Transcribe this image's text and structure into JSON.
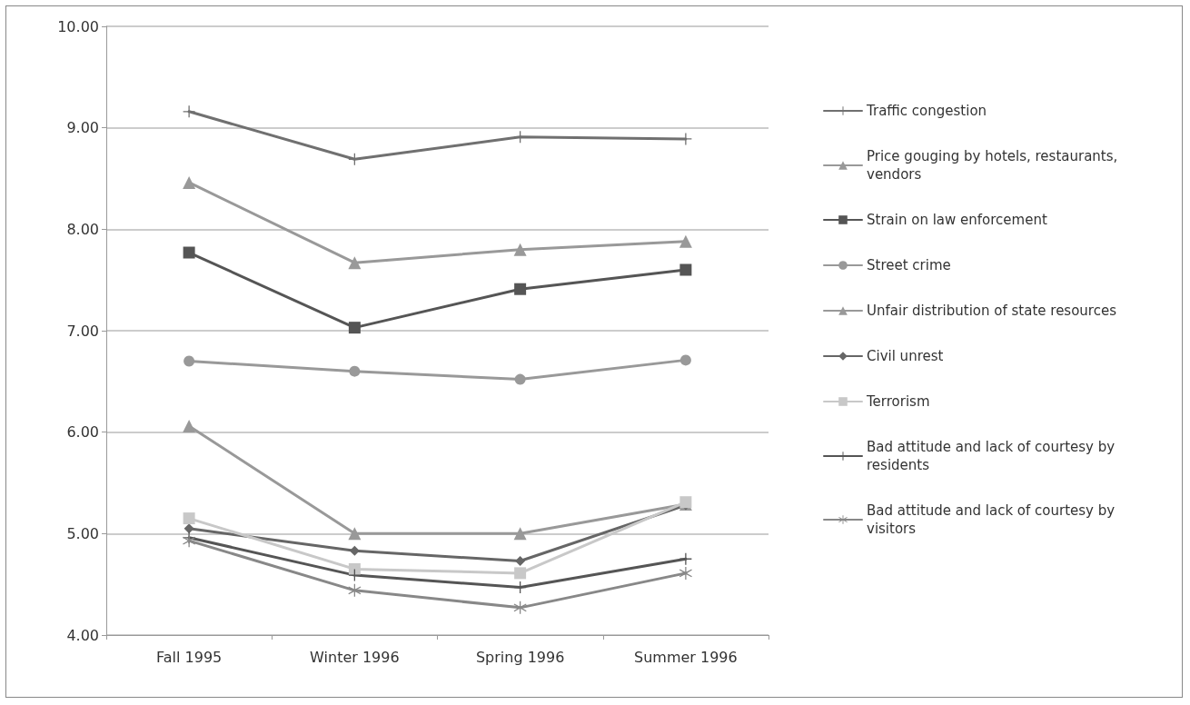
{
  "chart_data": {
    "type": "line",
    "categories": [
      "Fall 1995",
      "Winter 1996",
      "Spring 1996",
      "Summer 1996"
    ],
    "series": [
      {
        "name": "Traffic congestion",
        "color": "#707070",
        "marker": "cross",
        "values": [
          9.16,
          8.69,
          8.91,
          8.89
        ]
      },
      {
        "name": "Price gouging by hotels, restaurants, vendors",
        "color": "#999999",
        "marker": "triangle",
        "values": [
          8.46,
          7.67,
          7.8,
          7.88
        ]
      },
      {
        "name": "Strain on law enforcement",
        "color": "#555555",
        "marker": "square",
        "values": [
          7.77,
          7.03,
          7.41,
          7.6
        ]
      },
      {
        "name": "Street crime",
        "color": "#999999",
        "marker": "circle",
        "values": [
          6.7,
          6.6,
          6.52,
          6.71
        ]
      },
      {
        "name": "Unfair distribution of state resources",
        "color": "#999999",
        "marker": "triangle",
        "values": [
          6.06,
          5.0,
          5.0,
          5.29
        ]
      },
      {
        "name": "Civil unrest",
        "color": "#666666",
        "marker": "diamond",
        "values": [
          5.05,
          4.83,
          4.73,
          5.28
        ]
      },
      {
        "name": "Terrorism",
        "color": "#c8c8c8",
        "marker": "square",
        "values": [
          5.15,
          4.65,
          4.61,
          5.31
        ]
      },
      {
        "name": "Bad attitude and lack of courtesy by residents",
        "color": "#555555",
        "marker": "cross",
        "values": [
          4.96,
          4.59,
          4.47,
          4.75
        ]
      },
      {
        "name": "Bad attitude and lack of courtesy by visitors",
        "color": "#888888",
        "marker": "star",
        "values": [
          4.93,
          4.44,
          4.27,
          4.61
        ]
      }
    ],
    "ylim": [
      4,
      10
    ],
    "yticks": [
      {
        "value": 4,
        "label": "4.00"
      },
      {
        "value": 5,
        "label": "5.00"
      },
      {
        "value": 6,
        "label": "6.00"
      },
      {
        "value": 7,
        "label": "7.00"
      },
      {
        "value": 8,
        "label": "8.00"
      },
      {
        "value": 9,
        "label": "9.00"
      },
      {
        "value": 10,
        "label": "10.00"
      }
    ],
    "grid": "y",
    "legend": "right",
    "line_style": "solid"
  }
}
